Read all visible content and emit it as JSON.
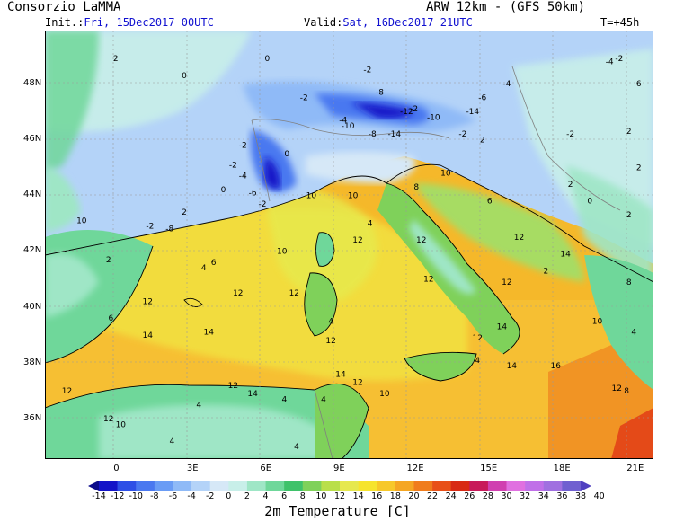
{
  "header": {
    "org": "Consorzio LaMMA",
    "model": "ARW 12km - (GFS 50km)",
    "init_label": "Init.:",
    "init_value": "Fri, 15Dec2017 00UTC",
    "valid_label": "Valid:",
    "valid_value": "Sat, 16Dec2017 21UTC",
    "lead": "T=+45h"
  },
  "map": {
    "lat_labels": [
      "48N",
      "46N",
      "44N",
      "42N",
      "40N",
      "38N",
      "36N"
    ],
    "lon_labels": [
      "0",
      "3E",
      "6E",
      "9E",
      "12E",
      "15E",
      "18E",
      "21E"
    ],
    "contour_labels": [
      {
        "t": "2",
        "lon": -0.2,
        "lat": 48.8
      },
      {
        "t": "0",
        "lon": 2.6,
        "lat": 48.2
      },
      {
        "t": "0",
        "lon": 6.0,
        "lat": 48.8
      },
      {
        "t": "-2",
        "lon": 7.5,
        "lat": 47.4
      },
      {
        "t": "-2",
        "lon": 10.1,
        "lat": 48.4
      },
      {
        "t": "-2",
        "lon": 12.0,
        "lat": 47.0
      },
      {
        "t": "-12",
        "lon": 11.7,
        "lat": 46.9
      },
      {
        "t": "-10",
        "lon": 12.8,
        "lat": 46.7
      },
      {
        "t": "-14",
        "lon": 14.4,
        "lat": 46.9
      },
      {
        "t": "-8",
        "lon": 10.6,
        "lat": 47.6
      },
      {
        "t": "-6",
        "lon": 14.8,
        "lat": 47.4
      },
      {
        "t": "-4",
        "lon": 15.8,
        "lat": 47.9
      },
      {
        "t": "-4",
        "lon": 9.1,
        "lat": 46.6
      },
      {
        "t": "-10",
        "lon": 9.3,
        "lat": 46.4
      },
      {
        "t": "-8",
        "lon": 10.3,
        "lat": 46.1
      },
      {
        "t": "-14",
        "lon": 11.2,
        "lat": 46.1
      },
      {
        "t": "-2",
        "lon": 14.0,
        "lat": 46.1
      },
      {
        "t": "2",
        "lon": 14.8,
        "lat": 45.9
      },
      {
        "t": "-2",
        "lon": 18.4,
        "lat": 46.1
      },
      {
        "t": "-2",
        "lon": 5.0,
        "lat": 45.7
      },
      {
        "t": "0",
        "lon": 6.8,
        "lat": 45.4
      },
      {
        "t": "-2",
        "lon": 4.6,
        "lat": 45.0
      },
      {
        "t": "-4",
        "lon": 5.0,
        "lat": 44.6
      },
      {
        "t": "-6",
        "lon": 5.4,
        "lat": 44.0
      },
      {
        "t": "-2",
        "lon": 5.8,
        "lat": 43.6
      },
      {
        "t": "0",
        "lon": 4.2,
        "lat": 44.1
      },
      {
        "t": "2",
        "lon": 2.6,
        "lat": 43.3
      },
      {
        "t": "-2",
        "lon": 1.2,
        "lat": 42.8
      },
      {
        "t": "-8",
        "lon": 2.0,
        "lat": 42.7
      },
      {
        "t": "10",
        "lon": -1.6,
        "lat": 43.0
      },
      {
        "t": "10",
        "lon": 7.8,
        "lat": 43.9
      },
      {
        "t": "10",
        "lon": 9.5,
        "lat": 43.9
      },
      {
        "t": "10",
        "lon": 13.3,
        "lat": 44.7
      },
      {
        "t": "8",
        "lon": 12.1,
        "lat": 44.2
      },
      {
        "t": "6",
        "lon": 15.1,
        "lat": 43.7
      },
      {
        "t": "4",
        "lon": 10.2,
        "lat": 42.9
      },
      {
        "t": "12",
        "lon": 9.7,
        "lat": 42.3
      },
      {
        "t": "10",
        "lon": 6.6,
        "lat": 41.9
      },
      {
        "t": "6",
        "lon": 3.8,
        "lat": 41.5
      },
      {
        "t": "4",
        "lon": 3.4,
        "lat": 41.3
      },
      {
        "t": "12",
        "lon": 7.1,
        "lat": 40.4
      },
      {
        "t": "12",
        "lon": 12.3,
        "lat": 42.3
      },
      {
        "t": "12",
        "lon": 16.3,
        "lat": 42.4
      },
      {
        "t": "14",
        "lon": 18.2,
        "lat": 41.8
      },
      {
        "t": "12",
        "lon": 15.8,
        "lat": 40.8
      },
      {
        "t": "12",
        "lon": 12.6,
        "lat": 40.9
      },
      {
        "t": "14",
        "lon": 15.6,
        "lat": 39.2
      },
      {
        "t": "12",
        "lon": 4.8,
        "lat": 40.4
      },
      {
        "t": "14",
        "lon": 3.6,
        "lat": 39.0
      },
      {
        "t": "14",
        "lon": 1.1,
        "lat": 38.9
      },
      {
        "t": "12",
        "lon": 1.1,
        "lat": 40.1
      },
      {
        "t": "6",
        "lon": -0.4,
        "lat": 39.5
      },
      {
        "t": "2",
        "lon": -0.5,
        "lat": 41.6
      },
      {
        "t": "4",
        "lon": 8.6,
        "lat": 39.4
      },
      {
        "t": "12",
        "lon": 8.6,
        "lat": 38.7
      },
      {
        "t": "14",
        "lon": 9.0,
        "lat": 37.5
      },
      {
        "t": "12",
        "lon": 9.7,
        "lat": 37.2
      },
      {
        "t": "10",
        "lon": 10.8,
        "lat": 36.8
      },
      {
        "t": "16",
        "lon": 17.8,
        "lat": 37.8
      },
      {
        "t": "14",
        "lon": 16.0,
        "lat": 37.8
      },
      {
        "t": "4",
        "lon": 14.6,
        "lat": 38.0
      },
      {
        "t": "12",
        "lon": 14.6,
        "lat": 38.8
      },
      {
        "t": "12",
        "lon": 4.6,
        "lat": 37.1
      },
      {
        "t": "14",
        "lon": 5.4,
        "lat": 36.8
      },
      {
        "t": "12",
        "lon": -2.2,
        "lat": 36.9
      },
      {
        "t": "4",
        "lon": 3.2,
        "lat": 36.4
      },
      {
        "t": "4",
        "lon": 6.7,
        "lat": 36.6
      },
      {
        "t": "4",
        "lon": 8.3,
        "lat": 36.6
      },
      {
        "t": "4",
        "lon": 2.1,
        "lat": 35.1
      },
      {
        "t": "10",
        "lon": 0.0,
        "lat": 35.7
      },
      {
        "t": "12",
        "lon": -0.5,
        "lat": 35.9
      },
      {
        "t": "4",
        "lon": 7.2,
        "lat": 34.9
      },
      {
        "t": "10",
        "lon": 19.5,
        "lat": 39.4
      },
      {
        "t": "12",
        "lon": 20.3,
        "lat": 37.0
      },
      {
        "t": "8",
        "lon": 20.7,
        "lat": 36.9
      },
      {
        "t": "2",
        "lon": 18.4,
        "lat": 44.3
      },
      {
        "t": "0",
        "lon": 19.2,
        "lat": 43.7
      },
      {
        "t": "2",
        "lon": 20.8,
        "lat": 43.2
      },
      {
        "t": "2",
        "lon": 21.2,
        "lat": 44.9
      },
      {
        "t": "2",
        "lon": 20.8,
        "lat": 46.2
      },
      {
        "t": "6",
        "lon": 21.2,
        "lat": 47.9
      },
      {
        "t": "-2",
        "lon": 20.4,
        "lat": 48.8
      },
      {
        "t": "-4",
        "lon": 20.0,
        "lat": 48.7
      },
      {
        "t": "2",
        "lon": 17.4,
        "lat": 41.2
      },
      {
        "t": "4",
        "lon": 21.0,
        "lat": 39.0
      },
      {
        "t": "8",
        "lon": 20.8,
        "lat": 40.8
      }
    ]
  },
  "colorbar": {
    "title": "2m Temperature [C]",
    "tick_labels": [
      "-14",
      "-12",
      "-10",
      "-8",
      "-6",
      "-4",
      "-2",
      "0",
      "2",
      "4",
      "6",
      "8",
      "10",
      "12",
      "14",
      "16",
      "18",
      "20",
      "22",
      "24",
      "26",
      "28",
      "30",
      "32",
      "34",
      "36",
      "38",
      "40"
    ],
    "colors": [
      "#0a0a8a",
      "#1414c8",
      "#2e4fe6",
      "#4a78f0",
      "#6a9cf5",
      "#8fbaf7",
      "#b4d3f8",
      "#d6e8f7",
      "#c8efe9",
      "#9fe6c6",
      "#6fd79a",
      "#3fc26a",
      "#7fd15a",
      "#b9df4a",
      "#e6e84e",
      "#f6e42e",
      "#f7c82a",
      "#f5a623",
      "#f07c1c",
      "#e85018",
      "#d82a14",
      "#c81a5a",
      "#d040b0",
      "#e070e0",
      "#c070e8",
      "#a070e0",
      "#7060d0",
      "#5040c0"
    ]
  },
  "colors": {
    "sea_warm": "#f5b82a",
    "land_cold": "#b4d3f8",
    "land_mild": "#6fd79a",
    "header_blue": "#1010d0"
  }
}
